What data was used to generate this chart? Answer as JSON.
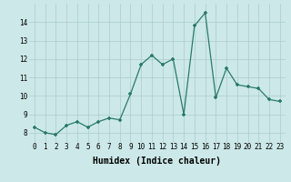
{
  "xlabel": "Humidex (Indice chaleur)",
  "x_values": [
    0,
    1,
    2,
    3,
    4,
    5,
    6,
    7,
    8,
    9,
    10,
    11,
    12,
    13,
    14,
    15,
    16,
    17,
    18,
    19,
    20,
    21,
    22,
    23
  ],
  "y_values": [
    8.3,
    8.0,
    7.9,
    8.4,
    8.6,
    8.3,
    8.6,
    8.8,
    8.7,
    10.1,
    11.7,
    12.2,
    11.7,
    12.0,
    9.0,
    13.8,
    14.5,
    9.9,
    11.5,
    10.6,
    10.5,
    10.4,
    9.8,
    9.7
  ],
  "ylim": [
    7.5,
    15.0
  ],
  "xlim": [
    -0.5,
    23.5
  ],
  "yticks": [
    8,
    9,
    10,
    11,
    12,
    13,
    14
  ],
  "xticks": [
    0,
    1,
    2,
    3,
    4,
    5,
    6,
    7,
    8,
    9,
    10,
    11,
    12,
    13,
    14,
    15,
    16,
    17,
    18,
    19,
    20,
    21,
    22,
    23
  ],
  "line_color": "#2a7a6a",
  "marker": "+",
  "bg_color": "#cce8e8",
  "grid_color": "#aacccc",
  "grid_color_minor": "#c8e0e0",
  "axis_label_fontsize": 6.5,
  "tick_fontsize": 5.5,
  "xlabel_fontsize": 7.0
}
